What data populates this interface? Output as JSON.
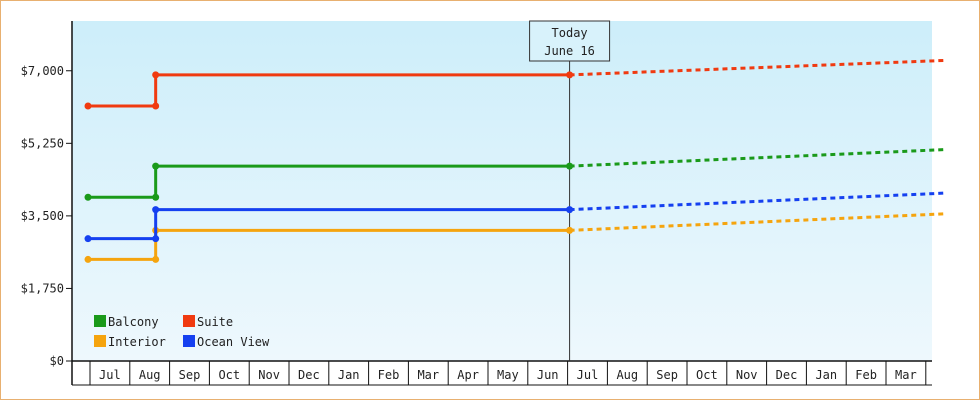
{
  "chart_data": {
    "type": "line",
    "y_ticks": [
      "$0",
      "$1,750",
      "$3,500",
      "$5,250",
      "$7,000"
    ],
    "y_tick_values": [
      0,
      1750,
      3500,
      5250,
      7000
    ],
    "ylim": [
      0,
      8200
    ],
    "months": [
      "Jul",
      "Aug",
      "Sep",
      "Oct",
      "Nov",
      "Dec",
      "Jan",
      "Feb",
      "Mar",
      "Apr",
      "May",
      "Jun",
      "Jul",
      "Aug",
      "Sep",
      "Oct",
      "Nov",
      "Dec",
      "Jan",
      "Feb",
      "Mar"
    ],
    "x_start": -0.55,
    "x_end": 21.0,
    "today": {
      "label": "Today",
      "date": "June 16",
      "x": 11.55
    },
    "series": [
      {
        "name": "Balcony",
        "color": "#1a9a1a",
        "history": [
          [
            -0.55,
            3950
          ],
          [
            1.15,
            3950
          ],
          [
            1.15,
            4700
          ],
          [
            11.55,
            4700
          ]
        ],
        "forecast": [
          [
            11.55,
            4700
          ],
          [
            21.0,
            5100
          ]
        ]
      },
      {
        "name": "Suite",
        "color": "#f03a10",
        "history": [
          [
            -0.55,
            6150
          ],
          [
            1.15,
            6150
          ],
          [
            1.15,
            6900
          ],
          [
            11.55,
            6900
          ]
        ],
        "forecast": [
          [
            11.55,
            6900
          ],
          [
            21.0,
            7250
          ]
        ]
      },
      {
        "name": "Interior",
        "color": "#f5a40e",
        "history": [
          [
            -0.55,
            2450
          ],
          [
            1.15,
            2450
          ],
          [
            1.15,
            3150
          ],
          [
            11.55,
            3150
          ]
        ],
        "forecast": [
          [
            11.55,
            3150
          ],
          [
            21.0,
            3550
          ]
        ]
      },
      {
        "name": "Ocean View",
        "color": "#1540f0",
        "history": [
          [
            -0.55,
            2950
          ],
          [
            1.15,
            2950
          ],
          [
            1.15,
            3650
          ],
          [
            11.55,
            3650
          ]
        ],
        "forecast": [
          [
            11.55,
            3650
          ],
          [
            21.0,
            4050
          ]
        ]
      }
    ],
    "legend": [
      {
        "name": "Balcony",
        "color": "#1a9a1a"
      },
      {
        "name": "Suite",
        "color": "#f03a10"
      },
      {
        "name": "Interior",
        "color": "#f5a40e"
      },
      {
        "name": "Ocean View",
        "color": "#1540f0"
      }
    ],
    "legend_position": "bottom-left",
    "background_gradient": [
      "#cdeefa",
      "#eef8fd"
    ]
  }
}
